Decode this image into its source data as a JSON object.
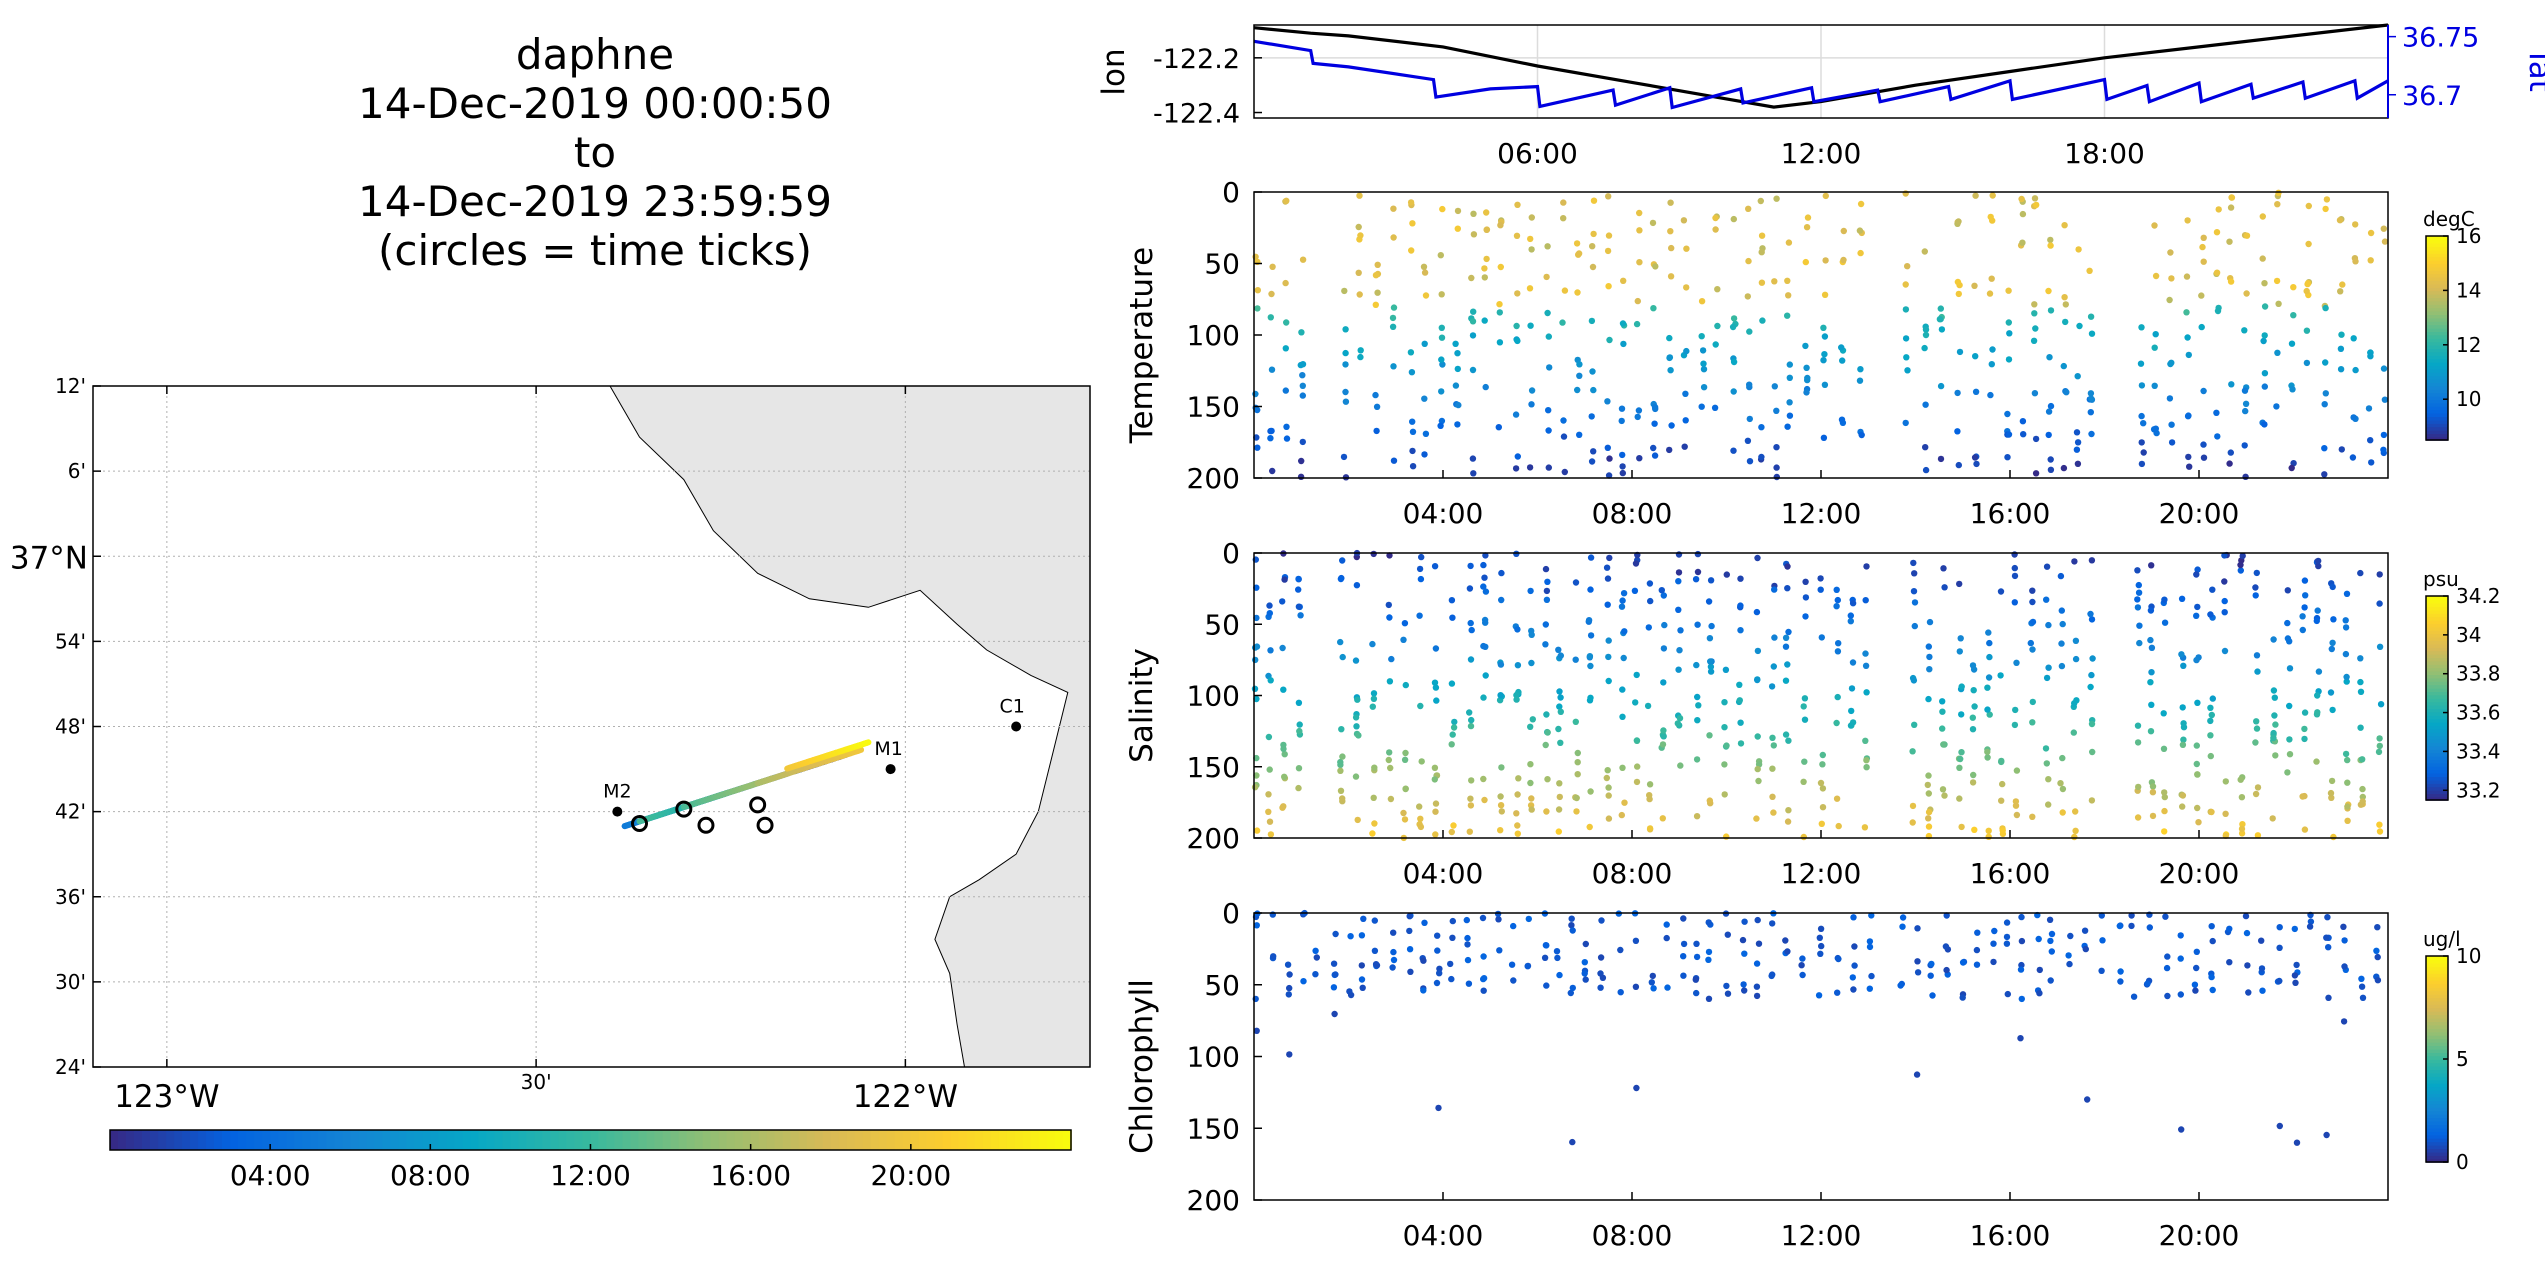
{
  "title": {
    "name": "daphne",
    "start": "14-Dec-2019 00:00:50",
    "to": "to",
    "end": "14-Dec-2019 23:59:59",
    "note": "(circles = time ticks)"
  },
  "colors": {
    "axis": "#000000",
    "land": "#e6e6e6",
    "grid": "#b0b0b0",
    "lon_line": "#000000",
    "lat_line": "#0000e0",
    "parula": [
      "#352a87",
      "#0363e1",
      "#1485d4",
      "#06a7c6",
      "#38b99e",
      "#92bf73",
      "#d9ba56",
      "#fcce2e",
      "#f9fb0e"
    ]
  },
  "chart_data": [
    {
      "type": "map",
      "name": "track-map",
      "lon_range": [
        -123.1,
        -121.75
      ],
      "lat_range": [
        36.4,
        37.2
      ],
      "lon_ticks": [
        {
          "value": -123.0,
          "label": "123°W",
          "major": true
        },
        {
          "value": -122.5,
          "label": "30'",
          "major": false
        },
        {
          "value": -122.0,
          "label": "122°W",
          "major": true
        }
      ],
      "lat_ticks": [
        {
          "value": 37.2,
          "label": "12'",
          "major": false
        },
        {
          "value": 37.1,
          "label": "6'",
          "major": false
        },
        {
          "value": 37.0,
          "label": "37°N",
          "major": true
        },
        {
          "value": 36.9,
          "label": "54'",
          "major": false
        },
        {
          "value": 36.8,
          "label": "48'",
          "major": false
        },
        {
          "value": 36.7,
          "label": "42'",
          "major": false
        },
        {
          "value": 36.6,
          "label": "36'",
          "major": false
        },
        {
          "value": 36.5,
          "label": "30'",
          "major": false
        },
        {
          "value": 36.4,
          "label": "24'",
          "major": false
        }
      ],
      "stations": [
        {
          "label": "M2",
          "lon": -122.39,
          "lat": 36.7
        },
        {
          "label": "M1",
          "lon": -122.02,
          "lat": 36.75
        },
        {
          "label": "C1",
          "lon": -121.85,
          "lat": 36.8
        }
      ],
      "track_segments": [
        {
          "t0": 0.0,
          "t1": 2.0,
          "lon": [
            -122.08,
            -122.15
          ]
        },
        {
          "t0": 2.0,
          "t1": 5.0,
          "lon": [
            -122.16,
            -122.38
          ]
        },
        {
          "t0": 5.0,
          "t1": 9.0,
          "lon": [
            -122.38,
            -122.24
          ]
        },
        {
          "t0": 9.0,
          "t1": 12.5,
          "lon": [
            -122.24,
            -122.36
          ]
        },
        {
          "t0": 12.5,
          "t1": 16.0,
          "lon": [
            -122.3,
            -122.18
          ]
        },
        {
          "t0": 16.0,
          "t1": 20.0,
          "lon": [
            -122.2,
            -122.06
          ]
        },
        {
          "t0": 20.0,
          "t1": 24.0,
          "lon": [
            -122.16,
            -122.05
          ]
        }
      ],
      "time_tick_circles": [
        {
          "lon": -122.36,
          "lat": 36.686
        },
        {
          "lon": -122.3,
          "lat": 36.703
        },
        {
          "lon": -122.27,
          "lat": 36.684
        },
        {
          "lon": -122.2,
          "lat": 36.708
        },
        {
          "lon": -122.19,
          "lat": 36.684
        }
      ]
    },
    {
      "type": "colorbar",
      "name": "time-colorbar",
      "range": [
        0,
        24
      ],
      "ticks": [
        {
          "value": 4,
          "label": "04:00"
        },
        {
          "value": 8,
          "label": "08:00"
        },
        {
          "value": 12,
          "label": "12:00"
        },
        {
          "value": 16,
          "label": "16:00"
        },
        {
          "value": 20,
          "label": "20:00"
        }
      ]
    },
    {
      "type": "line",
      "name": "lon-lat",
      "xlim": [
        0,
        24
      ],
      "x_ticks": [
        {
          "value": 6,
          "label": "06:00"
        },
        {
          "value": 12,
          "label": "12:00"
        },
        {
          "value": 18,
          "label": "18:00"
        }
      ],
      "left_axis": {
        "label": "lon",
        "ylim": [
          -122.42,
          -122.08
        ],
        "ticks": [
          {
            "value": -122.2,
            "label": "-122.2"
          },
          {
            "value": -122.4,
            "label": "-122.4"
          }
        ]
      },
      "right_axis": {
        "label": "lat",
        "ylim": [
          36.68,
          36.76
        ],
        "ticks": [
          {
            "value": 36.75,
            "label": "36.75"
          },
          {
            "value": 36.7,
            "label": "36.7"
          }
        ]
      },
      "series": [
        {
          "name": "lon",
          "axis": "left",
          "x": [
            0,
            1.2,
            2,
            4,
            6,
            8,
            10,
            11,
            12,
            14,
            16,
            18,
            20,
            22,
            24
          ],
          "y": [
            -122.09,
            -122.11,
            -122.12,
            -122.16,
            -122.23,
            -122.29,
            -122.35,
            -122.38,
            -122.36,
            -122.3,
            -122.25,
            -122.2,
            -122.16,
            -122.12,
            -122.08
          ]
        },
        {
          "name": "lat",
          "axis": "right",
          "x": [
            0,
            1.2,
            1.25,
            2.0,
            3.8,
            3.85,
            5.0,
            6.0,
            6.05,
            7.6,
            7.65,
            8.8,
            8.85,
            10.3,
            10.35,
            11.8,
            11.85,
            13.2,
            13.25,
            14.7,
            14.75,
            16.0,
            16.05,
            18.0,
            18.05,
            18.9,
            18.95,
            20.0,
            20.05,
            21.1,
            21.15,
            22.2,
            22.25,
            23.3,
            23.35,
            24.0
          ],
          "y": [
            36.746,
            36.738,
            36.727,
            36.724,
            36.713,
            36.698,
            36.705,
            36.707,
            36.69,
            36.704,
            36.691,
            36.706,
            36.689,
            36.705,
            36.693,
            36.706,
            36.694,
            36.704,
            36.694,
            36.707,
            36.696,
            36.712,
            36.696,
            36.713,
            36.696,
            36.708,
            36.694,
            36.71,
            36.694,
            36.709,
            36.697,
            36.711,
            36.697,
            36.712,
            36.697,
            36.712
          ]
        }
      ]
    },
    {
      "type": "scatter",
      "name": "temperature",
      "ylabel": "Temperature",
      "units": "degC",
      "ylim": [
        200,
        0
      ],
      "y_ticks": [
        0,
        50,
        100,
        150,
        200
      ],
      "xlim": [
        0,
        24
      ],
      "x_ticks": [
        {
          "value": 4,
          "label": "04:00"
        },
        {
          "value": 8,
          "label": "08:00"
        },
        {
          "value": 12,
          "label": "12:00"
        },
        {
          "value": 16,
          "label": "16:00"
        },
        {
          "value": 20,
          "label": "20:00"
        }
      ],
      "crange": [
        8.5,
        16
      ],
      "c_ticks": [
        {
          "value": 10,
          "label": "10"
        },
        {
          "value": 12,
          "label": "12"
        },
        {
          "value": 14,
          "label": "14"
        },
        {
          "value": 16,
          "label": "16"
        }
      ],
      "gaps": [
        [
          1.1,
          1.8
        ],
        [
          13.1,
          13.7
        ],
        [
          17.9,
          18.5
        ]
      ],
      "profile": {
        "shallow_c": 14.3,
        "thermocline_depth": 90,
        "deep_c": 9.0,
        "min_depth": 0,
        "max_depth": 200
      }
    },
    {
      "type": "scatter",
      "name": "salinity",
      "ylabel": "Salinity",
      "units": "psu",
      "ylim": [
        200,
        0
      ],
      "y_ticks": [
        0,
        50,
        100,
        150,
        200
      ],
      "xlim": [
        0,
        24
      ],
      "x_ticks": [
        {
          "value": 4,
          "label": "04:00"
        },
        {
          "value": 8,
          "label": "08:00"
        },
        {
          "value": 12,
          "label": "12:00"
        },
        {
          "value": 16,
          "label": "16:00"
        },
        {
          "value": 20,
          "label": "20:00"
        }
      ],
      "crange": [
        33.15,
        34.2
      ],
      "c_ticks": [
        {
          "value": 33.2,
          "label": "33.2"
        },
        {
          "value": 33.4,
          "label": "33.4"
        },
        {
          "value": 33.6,
          "label": "33.6"
        },
        {
          "value": 33.8,
          "label": "33.8"
        },
        {
          "value": 34.0,
          "label": "34"
        },
        {
          "value": 34.2,
          "label": "34.2"
        }
      ],
      "gaps": [
        [
          1.1,
          1.8
        ],
        [
          13.1,
          13.7
        ],
        [
          17.9,
          18.5
        ]
      ],
      "profile": {
        "surface_c": 33.2,
        "deep_c": 34.05,
        "min_depth": 0,
        "max_depth": 200
      }
    },
    {
      "type": "scatter",
      "name": "chlorophyll",
      "ylabel": "Chlorophyll",
      "units": "ug/l",
      "ylim": [
        200,
        0
      ],
      "y_ticks": [
        0,
        50,
        100,
        150,
        200
      ],
      "xlim": [
        0,
        24
      ],
      "x_ticks": [
        {
          "value": 4,
          "label": "04:00"
        },
        {
          "value": 8,
          "label": "08:00"
        },
        {
          "value": 12,
          "label": "12:00"
        },
        {
          "value": 16,
          "label": "16:00"
        },
        {
          "value": 20,
          "label": "20:00"
        }
      ],
      "crange": [
        0,
        10
      ],
      "c_ticks": [
        {
          "value": 0,
          "label": "0"
        },
        {
          "value": 5,
          "label": "5"
        },
        {
          "value": 10,
          "label": "10"
        }
      ],
      "gaps": [
        [
          13.1,
          13.7
        ]
      ],
      "profile": {
        "typical_c": 0.6,
        "dense_max_depth": 60,
        "sparse_max_depth": 200
      }
    }
  ]
}
